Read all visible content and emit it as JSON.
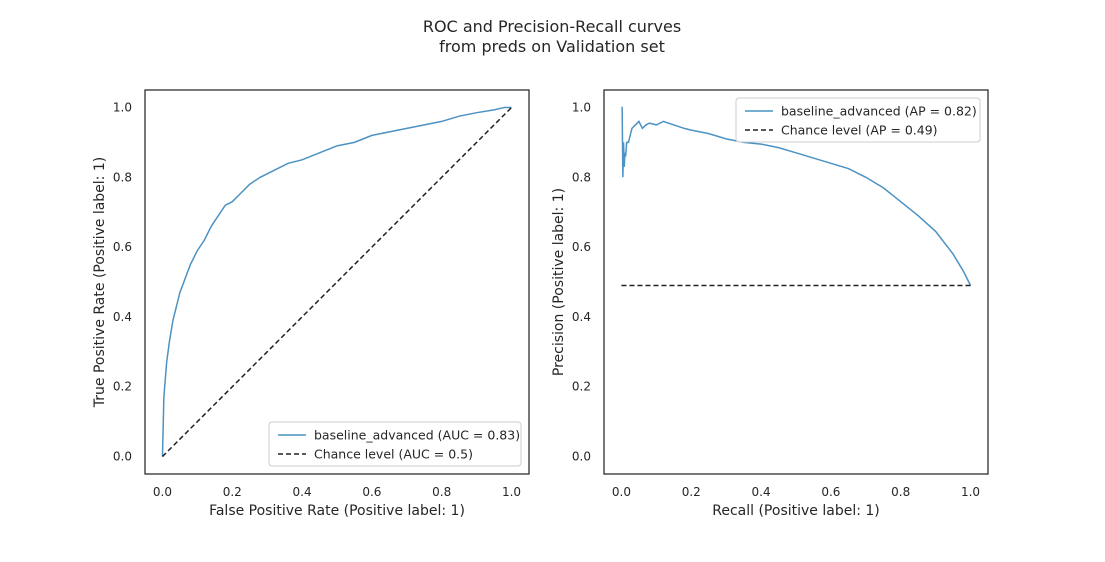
{
  "figure": {
    "title_lines": [
      "ROC and Precision-Recall curves",
      "from preds on Validation set"
    ],
    "curve_color": "#4c92c3",
    "chance_color": "#222222"
  },
  "chart_data": [
    {
      "type": "line",
      "xlabel": "False Positive Rate (Positive label: 1)",
      "ylabel": "True Positive Rate (Positive label: 1)",
      "xlim": [
        -0.05,
        1.05
      ],
      "ylim": [
        -0.05,
        1.05
      ],
      "xticks": [
        "0.0",
        "0.2",
        "0.4",
        "0.6",
        "0.8",
        "1.0"
      ],
      "yticks": [
        "0.0",
        "0.2",
        "0.4",
        "0.6",
        "0.8",
        "1.0"
      ],
      "grid": false,
      "legend_position": "lower-right",
      "series": [
        {
          "name": "baseline_advanced (AUC = 0.83)",
          "style": "solid",
          "x": [
            0,
            0.002,
            0.004,
            0.008,
            0.012,
            0.02,
            0.03,
            0.04,
            0.05,
            0.065,
            0.08,
            0.1,
            0.12,
            0.14,
            0.16,
            0.18,
            0.2,
            0.22,
            0.25,
            0.28,
            0.32,
            0.36,
            0.4,
            0.45,
            0.5,
            0.55,
            0.6,
            0.65,
            0.7,
            0.75,
            0.8,
            0.85,
            0.9,
            0.95,
            0.98,
            1.0
          ],
          "y": [
            0,
            0.08,
            0.17,
            0.22,
            0.27,
            0.33,
            0.39,
            0.43,
            0.47,
            0.51,
            0.55,
            0.59,
            0.62,
            0.66,
            0.69,
            0.72,
            0.73,
            0.75,
            0.78,
            0.8,
            0.82,
            0.84,
            0.85,
            0.87,
            0.89,
            0.9,
            0.92,
            0.93,
            0.94,
            0.95,
            0.96,
            0.975,
            0.985,
            0.993,
            1.0,
            1.0
          ]
        },
        {
          "name": "Chance level (AUC = 0.5)",
          "style": "dashed",
          "x": [
            0,
            1
          ],
          "y": [
            0,
            1
          ]
        }
      ]
    },
    {
      "type": "line",
      "xlabel": "Recall (Positive label: 1)",
      "ylabel": "Precision (Positive label: 1)",
      "xlim": [
        -0.05,
        1.05
      ],
      "ylim": [
        -0.05,
        1.05
      ],
      "xticks": [
        "0.0",
        "0.2",
        "0.4",
        "0.6",
        "0.8",
        "1.0"
      ],
      "yticks": [
        "0.0",
        "0.2",
        "0.4",
        "0.6",
        "0.8",
        "1.0"
      ],
      "grid": false,
      "legend_position": "upper-right",
      "series": [
        {
          "name": "baseline_advanced (AP = 0.82)",
          "style": "solid",
          "x": [
            0.0,
            0.002,
            0.004,
            0.006,
            0.008,
            0.01,
            0.012,
            0.015,
            0.02,
            0.025,
            0.03,
            0.04,
            0.05,
            0.06,
            0.07,
            0.08,
            0.1,
            0.12,
            0.15,
            0.18,
            0.2,
            0.25,
            0.3,
            0.35,
            0.4,
            0.45,
            0.5,
            0.55,
            0.6,
            0.65,
            0.7,
            0.75,
            0.8,
            0.85,
            0.9,
            0.95,
            0.98,
            1.0
          ],
          "y": [
            1.0,
            1.0,
            0.8,
            0.9,
            0.83,
            0.87,
            0.86,
            0.9,
            0.9,
            0.92,
            0.94,
            0.95,
            0.96,
            0.94,
            0.95,
            0.955,
            0.95,
            0.96,
            0.95,
            0.94,
            0.935,
            0.925,
            0.91,
            0.9,
            0.895,
            0.885,
            0.87,
            0.855,
            0.84,
            0.825,
            0.8,
            0.77,
            0.73,
            0.69,
            0.645,
            0.58,
            0.53,
            0.49
          ]
        },
        {
          "name": "Chance level (AP = 0.49)",
          "style": "dashed",
          "x": [
            0,
            1
          ],
          "y": [
            0.49,
            0.49
          ]
        }
      ]
    }
  ]
}
